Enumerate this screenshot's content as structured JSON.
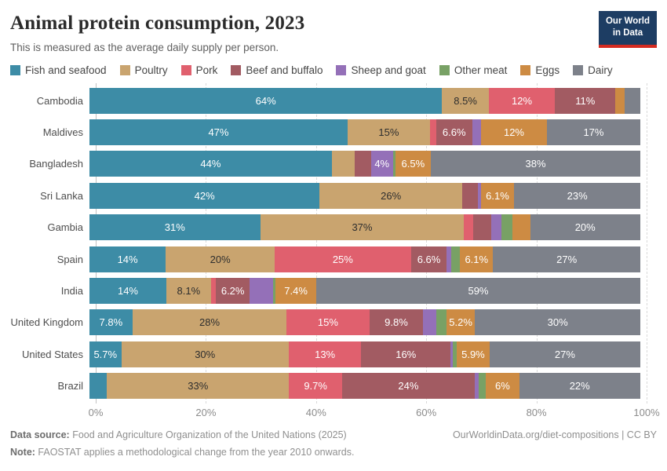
{
  "header": {
    "title": "Animal protein consumption, 2023",
    "subtitle": "This is measured as the average daily supply per person.",
    "logo": {
      "line1": "Our World",
      "line2": "in Data",
      "bg_color": "#1d3d63",
      "stripe_color": "#d42b21"
    }
  },
  "legend": [
    {
      "label": "Fish and seafood",
      "color": "#3d8ca6",
      "label_color": "#ffffff"
    },
    {
      "label": "Poultry",
      "color": "#c9a46f",
      "label_color": "#2e2e2e"
    },
    {
      "label": "Pork",
      "color": "#e0606e",
      "label_color": "#ffffff"
    },
    {
      "label": "Beef and buffalo",
      "color": "#a25b62",
      "label_color": "#ffffff"
    },
    {
      "label": "Sheep and goat",
      "color": "#9470b8",
      "label_color": "#ffffff"
    },
    {
      "label": "Other meat",
      "color": "#78a165",
      "label_color": "#ffffff"
    },
    {
      "label": "Eggs",
      "color": "#cd8b43",
      "label_color": "#ffffff"
    },
    {
      "label": "Dairy",
      "color": "#7d818a",
      "label_color": "#ffffff"
    }
  ],
  "chart_data": {
    "type": "bar",
    "stacked": true,
    "orientation": "horizontal",
    "unit": "%",
    "xlim": [
      0,
      100
    ],
    "x_ticks": [
      "0%",
      "20%",
      "40%",
      "60%",
      "80%",
      "100%"
    ],
    "grid": "dashed-vertical",
    "legend_position": "top",
    "categories": [
      "Cambodia",
      "Maldives",
      "Bangladesh",
      "Sri Lanka",
      "Gambia",
      "Spain",
      "India",
      "United Kingdom",
      "United States",
      "Brazil"
    ],
    "rows": [
      {
        "country": "Cambodia",
        "segments": [
          {
            "name": "Fish and seafood",
            "value": 64,
            "label": "64%"
          },
          {
            "name": "Poultry",
            "value": 8.5,
            "label": "8.5%"
          },
          {
            "name": "Pork",
            "value": 12,
            "label": "12%"
          },
          {
            "name": "Beef and buffalo",
            "value": 11,
            "label": "11%"
          },
          {
            "name": "Eggs",
            "value": 1.7,
            "label": ""
          },
          {
            "name": "Dairy",
            "value": 2.8,
            "label": ""
          }
        ]
      },
      {
        "country": "Maldives",
        "segments": [
          {
            "name": "Fish and seafood",
            "value": 47,
            "label": "47%"
          },
          {
            "name": "Poultry",
            "value": 15,
            "label": "15%"
          },
          {
            "name": "Pork",
            "value": 1.1,
            "label": ""
          },
          {
            "name": "Beef and buffalo",
            "value": 6.6,
            "label": "6.6%"
          },
          {
            "name": "Sheep and goat",
            "value": 1.6,
            "label": ""
          },
          {
            "name": "Eggs",
            "value": 12,
            "label": "12%"
          },
          {
            "name": "Dairy",
            "value": 17,
            "label": "17%"
          }
        ]
      },
      {
        "country": "Bangladesh",
        "segments": [
          {
            "name": "Fish and seafood",
            "value": 44,
            "label": "44%"
          },
          {
            "name": "Poultry",
            "value": 4.2,
            "label": ""
          },
          {
            "name": "Beef and buffalo",
            "value": 2.9,
            "label": ""
          },
          {
            "name": "Sheep and goat",
            "value": 4,
            "label": "4%"
          },
          {
            "name": "Other meat",
            "value": 0.4,
            "label": ""
          },
          {
            "name": "Eggs",
            "value": 6.5,
            "label": "6.5%"
          },
          {
            "name": "Dairy",
            "value": 38,
            "label": "38%"
          }
        ]
      },
      {
        "country": "Sri Lanka",
        "segments": [
          {
            "name": "Fish and seafood",
            "value": 42,
            "label": "42%"
          },
          {
            "name": "Poultry",
            "value": 26,
            "label": "26%"
          },
          {
            "name": "Beef and buffalo",
            "value": 2.8,
            "label": ""
          },
          {
            "name": "Sheep and goat",
            "value": 0.6,
            "label": ""
          },
          {
            "name": "Eggs",
            "value": 6.1,
            "label": "6.1%"
          },
          {
            "name": "Dairy",
            "value": 23,
            "label": "23%"
          }
        ]
      },
      {
        "country": "Gambia",
        "segments": [
          {
            "name": "Fish and seafood",
            "value": 31,
            "label": "31%"
          },
          {
            "name": "Poultry",
            "value": 37,
            "label": "37%"
          },
          {
            "name": "Pork",
            "value": 1.6,
            "label": ""
          },
          {
            "name": "Beef and buffalo",
            "value": 3.4,
            "label": ""
          },
          {
            "name": "Sheep and goat",
            "value": 1.8,
            "label": ""
          },
          {
            "name": "Other meat",
            "value": 2.0,
            "label": ""
          },
          {
            "name": "Eggs",
            "value": 3.2,
            "label": ""
          },
          {
            "name": "Dairy",
            "value": 20,
            "label": "20%"
          }
        ]
      },
      {
        "country": "Spain",
        "segments": [
          {
            "name": "Fish and seafood",
            "value": 14,
            "label": "14%"
          },
          {
            "name": "Poultry",
            "value": 20,
            "label": "20%"
          },
          {
            "name": "Pork",
            "value": 25,
            "label": "25%"
          },
          {
            "name": "Beef and buffalo",
            "value": 6.6,
            "label": "6.6%"
          },
          {
            "name": "Sheep and goat",
            "value": 0.8,
            "label": ""
          },
          {
            "name": "Other meat",
            "value": 1.6,
            "label": ""
          },
          {
            "name": "Eggs",
            "value": 6.1,
            "label": "6.1%"
          },
          {
            "name": "Dairy",
            "value": 27,
            "label": "27%"
          }
        ]
      },
      {
        "country": "India",
        "segments": [
          {
            "name": "Fish and seafood",
            "value": 14,
            "label": "14%"
          },
          {
            "name": "Poultry",
            "value": 8.1,
            "label": "8.1%"
          },
          {
            "name": "Pork",
            "value": 0.9,
            "label": ""
          },
          {
            "name": "Beef and buffalo",
            "value": 6.2,
            "label": "6.2%"
          },
          {
            "name": "Sheep and goat",
            "value": 4.2,
            "label": ""
          },
          {
            "name": "Other meat",
            "value": 0.5,
            "label": ""
          },
          {
            "name": "Eggs",
            "value": 7.4,
            "label": "7.4%"
          },
          {
            "name": "Dairy",
            "value": 59,
            "label": "59%"
          }
        ]
      },
      {
        "country": "United Kingdom",
        "segments": [
          {
            "name": "Fish and seafood",
            "value": 7.8,
            "label": "7.8%"
          },
          {
            "name": "Poultry",
            "value": 28,
            "label": "28%"
          },
          {
            "name": "Pork",
            "value": 15,
            "label": "15%"
          },
          {
            "name": "Beef and buffalo",
            "value": 9.8,
            "label": "9.8%"
          },
          {
            "name": "Sheep and goat",
            "value": 2.3,
            "label": ""
          },
          {
            "name": "Other meat",
            "value": 1.9,
            "label": ""
          },
          {
            "name": "Eggs",
            "value": 5.2,
            "label": "5.2%"
          },
          {
            "name": "Dairy",
            "value": 30,
            "label": "30%"
          }
        ]
      },
      {
        "country": "United States",
        "segments": [
          {
            "name": "Fish and seafood",
            "value": 5.7,
            "label": "5.7%"
          },
          {
            "name": "Poultry",
            "value": 30,
            "label": "30%"
          },
          {
            "name": "Pork",
            "value": 13,
            "label": "13%"
          },
          {
            "name": "Beef and buffalo",
            "value": 16,
            "label": "16%"
          },
          {
            "name": "Sheep and goat",
            "value": 0.4,
            "label": ""
          },
          {
            "name": "Other meat",
            "value": 0.7,
            "label": ""
          },
          {
            "name": "Eggs",
            "value": 5.9,
            "label": "5.9%"
          },
          {
            "name": "Dairy",
            "value": 27,
            "label": "27%"
          }
        ]
      },
      {
        "country": "Brazil",
        "segments": [
          {
            "name": "Fish and seafood",
            "value": 3.2,
            "label": ""
          },
          {
            "name": "Poultry",
            "value": 33,
            "label": "33%"
          },
          {
            "name": "Pork",
            "value": 9.7,
            "label": "9.7%"
          },
          {
            "name": "Beef and buffalo",
            "value": 24,
            "label": "24%"
          },
          {
            "name": "Sheep and goat",
            "value": 0.7,
            "label": ""
          },
          {
            "name": "Other meat",
            "value": 1.4,
            "label": ""
          },
          {
            "name": "Eggs",
            "value": 6,
            "label": "6%"
          },
          {
            "name": "Dairy",
            "value": 22,
            "label": "22%"
          }
        ]
      }
    ]
  },
  "footer": {
    "source_label": "Data source:",
    "source_text": " Food and Agriculture Organization of the United Nations (2025)",
    "link_text": "OurWorldinData.org/diet-compositions | CC BY",
    "note_label": "Note:",
    "note_text": " FAOSTAT applies a methodological change from the year 2010 onwards."
  }
}
